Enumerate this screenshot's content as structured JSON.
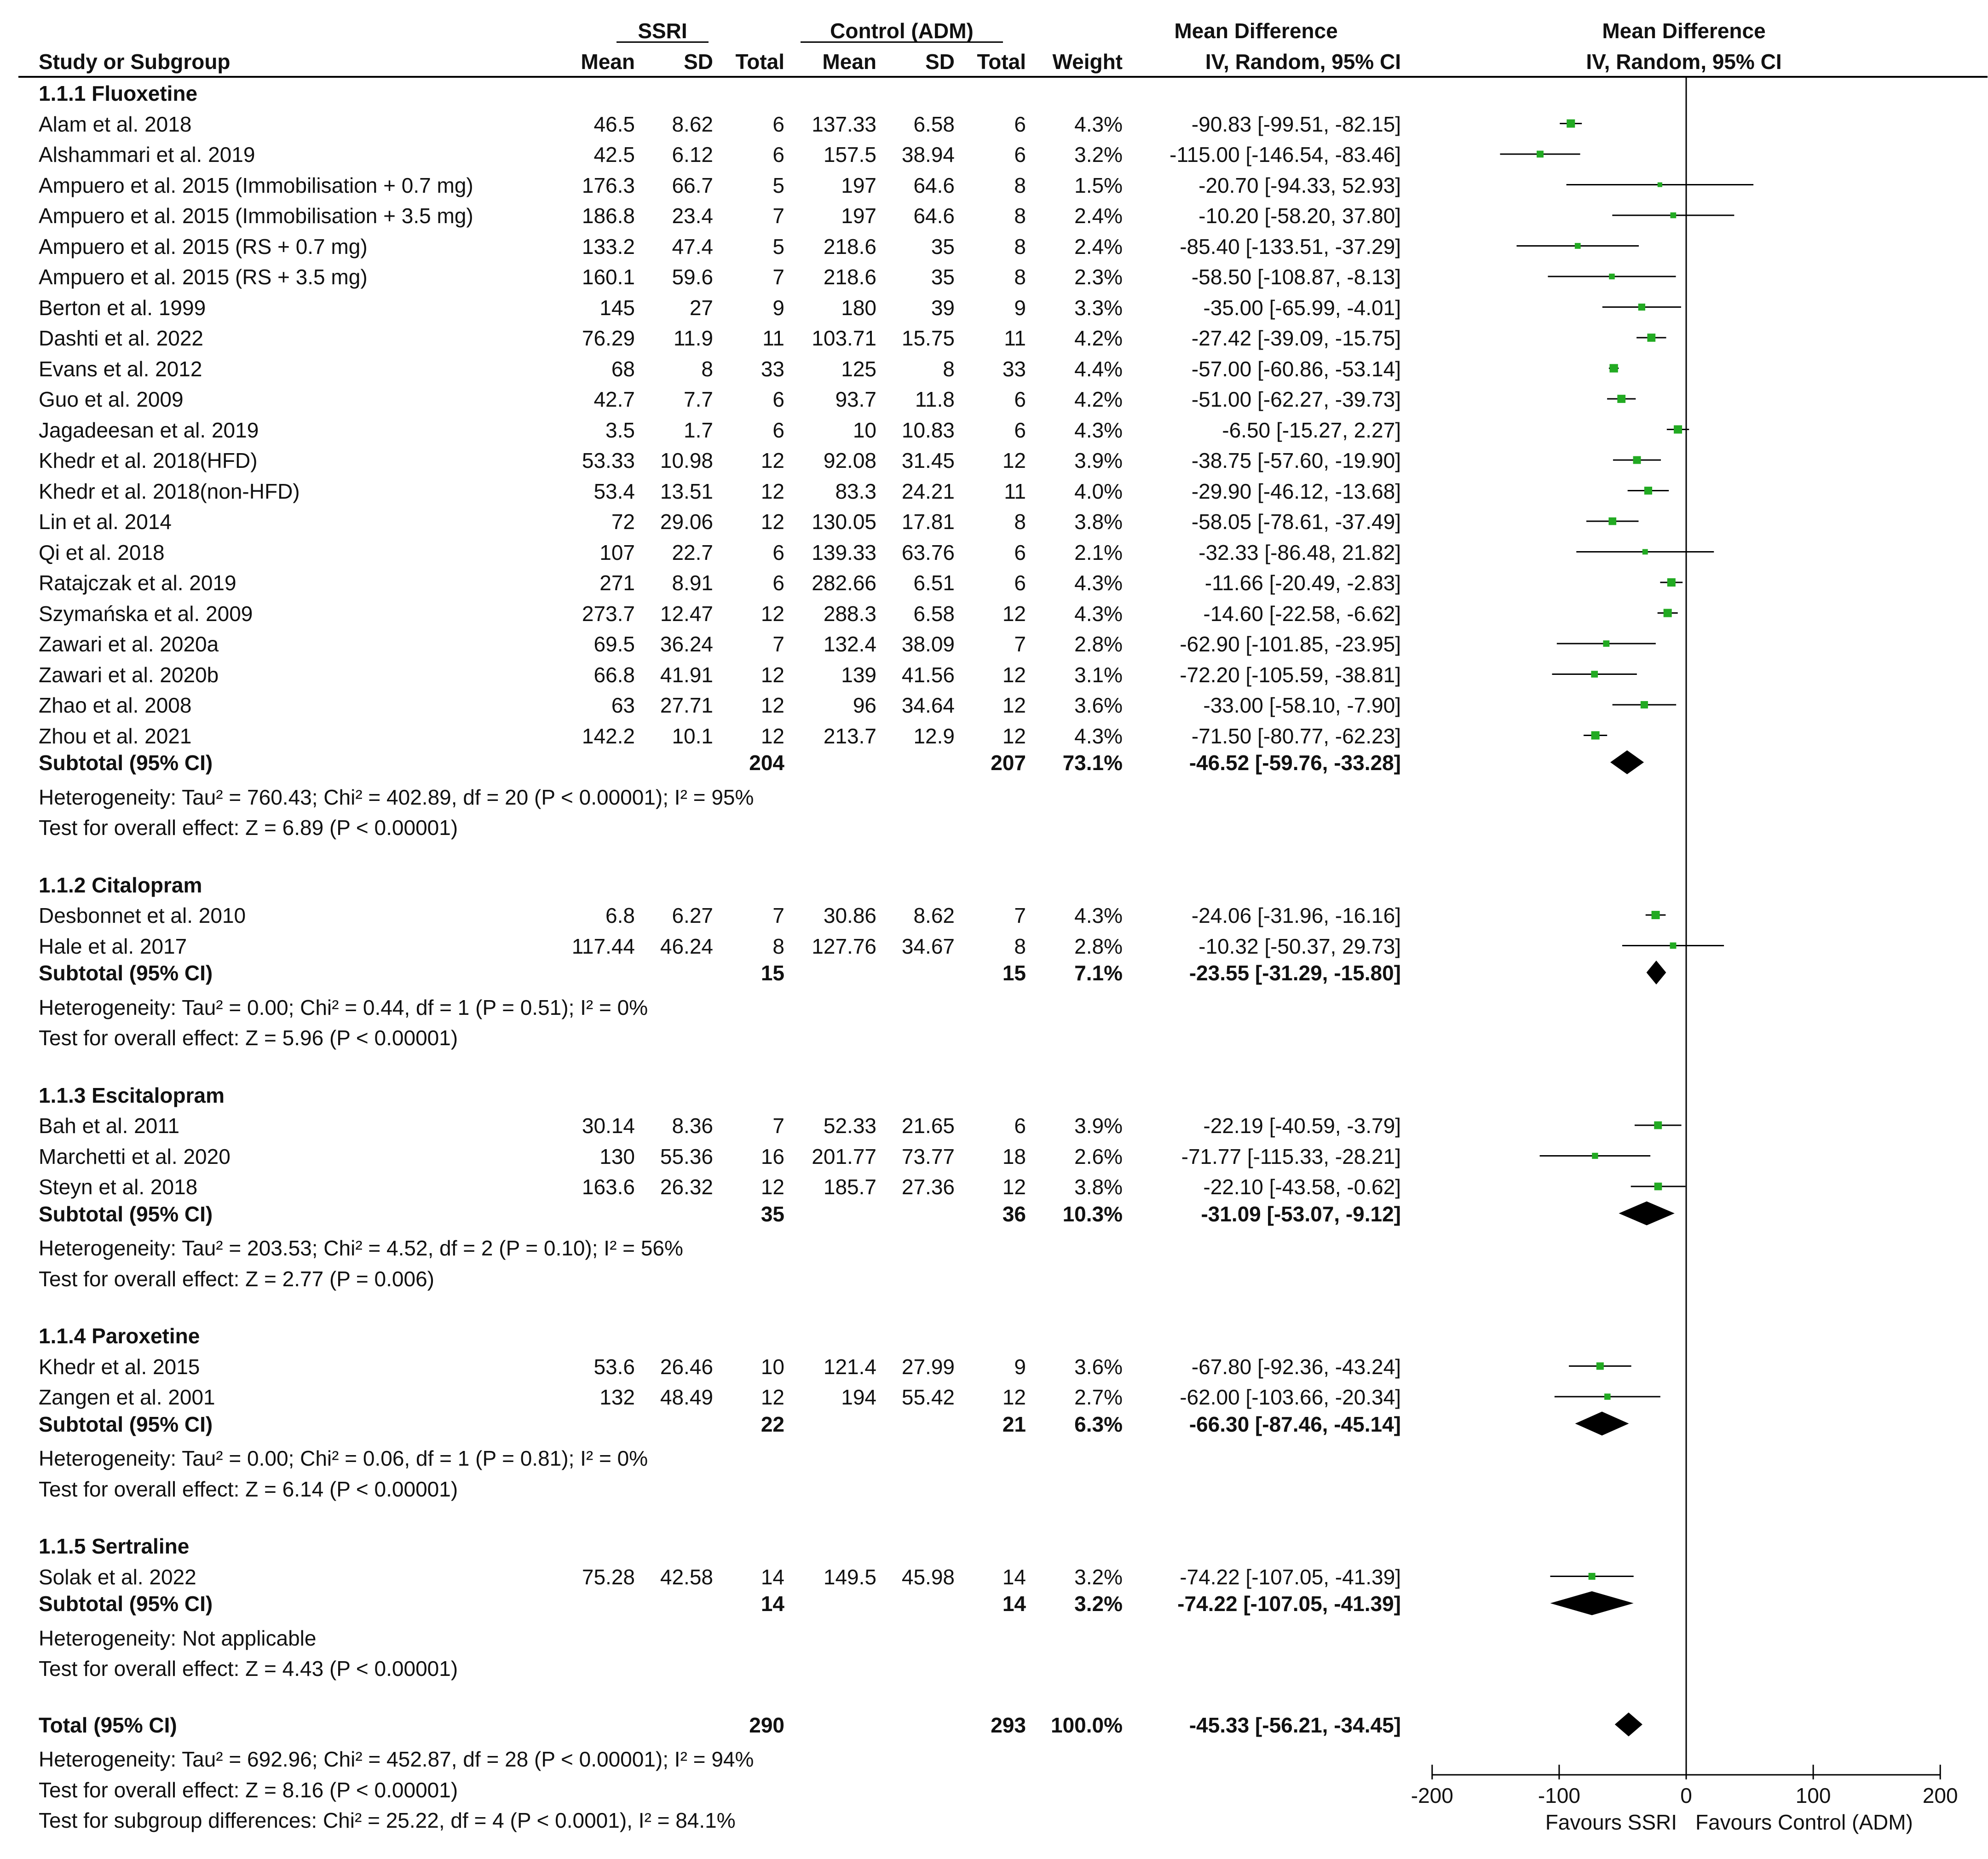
{
  "header": {
    "group_ssri": "SSRI",
    "group_control": "Control (ADM)",
    "md_title": "Mean Difference",
    "md_method": "IV, Random, 95% CI",
    "plot_title": "Mean Difference",
    "plot_method": "IV, Random, 95% CI",
    "study_col": "Study or Subgroup",
    "mean": "Mean",
    "sd": "SD",
    "total": "Total",
    "weight": "Weight"
  },
  "chart_data": {
    "type": "forest",
    "x_axis": {
      "min": -200,
      "max": 200,
      "ticks": [
        -200,
        -100,
        0,
        100,
        200
      ],
      "tick_labels": [
        "-200",
        "-100",
        "0",
        "100",
        "200"
      ],
      "left_label": "Favours SSRI",
      "right_label": "Favours Control (ADM)"
    },
    "subgroups": [
      {
        "name": "1.1.1 Fluoxetine",
        "studies": [
          {
            "study": "Alam et al. 2018",
            "m1": "46.5",
            "sd1": "8.62",
            "n1": "6",
            "m2": "137.33",
            "sd2": "6.58",
            "n2": "6",
            "weight": "4.3%",
            "ci_text": "-90.83 [-99.51, -82.15]",
            "md": -90.83,
            "lo": -99.51,
            "hi": -82.15,
            "w": 4.3
          },
          {
            "study": "Alshammari et al. 2019",
            "m1": "42.5",
            "sd1": "6.12",
            "n1": "6",
            "m2": "157.5",
            "sd2": "38.94",
            "n2": "6",
            "weight": "3.2%",
            "ci_text": "-115.00 [-146.54, -83.46]",
            "md": -115.0,
            "lo": -146.54,
            "hi": -83.46,
            "w": 3.2
          },
          {
            "study": "Ampuero et al. 2015 (Immobilisation + 0.7 mg)",
            "m1": "176.3",
            "sd1": "66.7",
            "n1": "5",
            "m2": "197",
            "sd2": "64.6",
            "n2": "8",
            "weight": "1.5%",
            "ci_text": "-20.70 [-94.33, 52.93]",
            "md": -20.7,
            "lo": -94.33,
            "hi": 52.93,
            "w": 1.5
          },
          {
            "study": "Ampuero et al. 2015 (Immobilisation + 3.5 mg)",
            "m1": "186.8",
            "sd1": "23.4",
            "n1": "7",
            "m2": "197",
            "sd2": "64.6",
            "n2": "8",
            "weight": "2.4%",
            "ci_text": "-10.20 [-58.20, 37.80]",
            "md": -10.2,
            "lo": -58.2,
            "hi": 37.8,
            "w": 2.4
          },
          {
            "study": "Ampuero et al. 2015 (RS + 0.7 mg)",
            "m1": "133.2",
            "sd1": "47.4",
            "n1": "5",
            "m2": "218.6",
            "sd2": "35",
            "n2": "8",
            "weight": "2.4%",
            "ci_text": "-85.40 [-133.51, -37.29]",
            "md": -85.4,
            "lo": -133.51,
            "hi": -37.29,
            "w": 2.4
          },
          {
            "study": "Ampuero et al. 2015 (RS + 3.5 mg)",
            "m1": "160.1",
            "sd1": "59.6",
            "n1": "7",
            "m2": "218.6",
            "sd2": "35",
            "n2": "8",
            "weight": "2.3%",
            "ci_text": "-58.50 [-108.87, -8.13]",
            "md": -58.5,
            "lo": -108.87,
            "hi": -8.13,
            "w": 2.3
          },
          {
            "study": "Berton et al. 1999",
            "m1": "145",
            "sd1": "27",
            "n1": "9",
            "m2": "180",
            "sd2": "39",
            "n2": "9",
            "weight": "3.3%",
            "ci_text": "-35.00 [-65.99, -4.01]",
            "md": -35.0,
            "lo": -65.99,
            "hi": -4.01,
            "w": 3.3
          },
          {
            "study": "Dashti et al. 2022",
            "m1": "76.29",
            "sd1": "11.9",
            "n1": "11",
            "m2": "103.71",
            "sd2": "15.75",
            "n2": "11",
            "weight": "4.2%",
            "ci_text": "-27.42 [-39.09, -15.75]",
            "md": -27.42,
            "lo": -39.09,
            "hi": -15.75,
            "w": 4.2
          },
          {
            "study": "Evans et al. 2012",
            "m1": "68",
            "sd1": "8",
            "n1": "33",
            "m2": "125",
            "sd2": "8",
            "n2": "33",
            "weight": "4.4%",
            "ci_text": "-57.00 [-60.86, -53.14]",
            "md": -57.0,
            "lo": -60.86,
            "hi": -53.14,
            "w": 4.4
          },
          {
            "study": "Guo et al. 2009",
            "m1": "42.7",
            "sd1": "7.7",
            "n1": "6",
            "m2": "93.7",
            "sd2": "11.8",
            "n2": "6",
            "weight": "4.2%",
            "ci_text": "-51.00 [-62.27, -39.73]",
            "md": -51.0,
            "lo": -62.27,
            "hi": -39.73,
            "w": 4.2
          },
          {
            "study": "Jagadeesan et al. 2019",
            "m1": "3.5",
            "sd1": "1.7",
            "n1": "6",
            "m2": "10",
            "sd2": "10.83",
            "n2": "6",
            "weight": "4.3%",
            "ci_text": "-6.50 [-15.27, 2.27]",
            "md": -6.5,
            "lo": -15.27,
            "hi": 2.27,
            "w": 4.3
          },
          {
            "study": "Khedr et al. 2018(HFD)",
            "m1": "53.33",
            "sd1": "10.98",
            "n1": "12",
            "m2": "92.08",
            "sd2": "31.45",
            "n2": "12",
            "weight": "3.9%",
            "ci_text": "-38.75 [-57.60, -19.90]",
            "md": -38.75,
            "lo": -57.6,
            "hi": -19.9,
            "w": 3.9
          },
          {
            "study": "Khedr et al. 2018(non-HFD)",
            "m1": "53.4",
            "sd1": "13.51",
            "n1": "12",
            "m2": "83.3",
            "sd2": "24.21",
            "n2": "11",
            "weight": "4.0%",
            "ci_text": "-29.90 [-46.12, -13.68]",
            "md": -29.9,
            "lo": -46.12,
            "hi": -13.68,
            "w": 4.0
          },
          {
            "study": "Lin et al. 2014",
            "m1": "72",
            "sd1": "29.06",
            "n1": "12",
            "m2": "130.05",
            "sd2": "17.81",
            "n2": "8",
            "weight": "3.8%",
            "ci_text": "-58.05 [-78.61, -37.49]",
            "md": -58.05,
            "lo": -78.61,
            "hi": -37.49,
            "w": 3.8
          },
          {
            "study": "Qi et al. 2018",
            "m1": "107",
            "sd1": "22.7",
            "n1": "6",
            "m2": "139.33",
            "sd2": "63.76",
            "n2": "6",
            "weight": "2.1%",
            "ci_text": "-32.33 [-86.48, 21.82]",
            "md": -32.33,
            "lo": -86.48,
            "hi": 21.82,
            "w": 2.1
          },
          {
            "study": "Ratajczak et al. 2019",
            "m1": "271",
            "sd1": "8.91",
            "n1": "6",
            "m2": "282.66",
            "sd2": "6.51",
            "n2": "6",
            "weight": "4.3%",
            "ci_text": "-11.66 [-20.49, -2.83]",
            "md": -11.66,
            "lo": -20.49,
            "hi": -2.83,
            "w": 4.3
          },
          {
            "study": "Szymańska et al. 2009",
            "m1": "273.7",
            "sd1": "12.47",
            "n1": "12",
            "m2": "288.3",
            "sd2": "6.58",
            "n2": "12",
            "weight": "4.3%",
            "ci_text": "-14.60 [-22.58, -6.62]",
            "md": -14.6,
            "lo": -22.58,
            "hi": -6.62,
            "w": 4.3
          },
          {
            "study": "Zawari et al. 2020a",
            "m1": "69.5",
            "sd1": "36.24",
            "n1": "7",
            "m2": "132.4",
            "sd2": "38.09",
            "n2": "7",
            "weight": "2.8%",
            "ci_text": "-62.90 [-101.85, -23.95]",
            "md": -62.9,
            "lo": -101.85,
            "hi": -23.95,
            "w": 2.8
          },
          {
            "study": "Zawari et al. 2020b",
            "m1": "66.8",
            "sd1": "41.91",
            "n1": "12",
            "m2": "139",
            "sd2": "41.56",
            "n2": "12",
            "weight": "3.1%",
            "ci_text": "-72.20 [-105.59, -38.81]",
            "md": -72.2,
            "lo": -105.59,
            "hi": -38.81,
            "w": 3.1
          },
          {
            "study": "Zhao et al. 2008",
            "m1": "63",
            "sd1": "27.71",
            "n1": "12",
            "m2": "96",
            "sd2": "34.64",
            "n2": "12",
            "weight": "3.6%",
            "ci_text": "-33.00 [-58.10, -7.90]",
            "md": -33.0,
            "lo": -58.1,
            "hi": -7.9,
            "w": 3.6
          },
          {
            "study": "Zhou et al. 2021",
            "m1": "142.2",
            "sd1": "10.1",
            "n1": "12",
            "m2": "213.7",
            "sd2": "12.9",
            "n2": "12",
            "weight": "4.3%",
            "ci_text": "-71.50 [-80.77, -62.23]",
            "md": -71.5,
            "lo": -80.77,
            "hi": -62.23,
            "w": 4.3
          }
        ],
        "subtotal": {
          "label": "Subtotal (95% CI)",
          "n1": "204",
          "n2": "207",
          "weight": "73.1%",
          "ci_text": "-46.52 [-59.76, -33.28]",
          "md": -46.52,
          "lo": -59.76,
          "hi": -33.28
        },
        "heterogeneity": "Heterogeneity: Tau² = 760.43; Chi² = 402.89, df = 20 (P < 0.00001); I² = 95%",
        "overall_effect": "Test for overall effect: Z = 6.89 (P < 0.00001)"
      },
      {
        "name": "1.1.2 Citalopram",
        "studies": [
          {
            "study": "Desbonnet et al. 2010",
            "m1": "6.8",
            "sd1": "6.27",
            "n1": "7",
            "m2": "30.86",
            "sd2": "8.62",
            "n2": "7",
            "weight": "4.3%",
            "ci_text": "-24.06 [-31.96, -16.16]",
            "md": -24.06,
            "lo": -31.96,
            "hi": -16.16,
            "w": 4.3
          },
          {
            "study": "Hale et al. 2017",
            "m1": "117.44",
            "sd1": "46.24",
            "n1": "8",
            "m2": "127.76",
            "sd2": "34.67",
            "n2": "8",
            "weight": "2.8%",
            "ci_text": "-10.32 [-50.37, 29.73]",
            "md": -10.32,
            "lo": -50.37,
            "hi": 29.73,
            "w": 2.8
          }
        ],
        "subtotal": {
          "label": "Subtotal (95% CI)",
          "n1": "15",
          "n2": "15",
          "weight": "7.1%",
          "ci_text": "-23.55 [-31.29, -15.80]",
          "md": -23.55,
          "lo": -31.29,
          "hi": -15.8
        },
        "heterogeneity": "Heterogeneity: Tau² = 0.00; Chi² = 0.44, df = 1 (P = 0.51); I² = 0%",
        "overall_effect": "Test for overall effect: Z = 5.96 (P < 0.00001)"
      },
      {
        "name": "1.1.3 Escitalopram",
        "studies": [
          {
            "study": "Bah et al. 2011",
            "m1": "30.14",
            "sd1": "8.36",
            "n1": "7",
            "m2": "52.33",
            "sd2": "21.65",
            "n2": "6",
            "weight": "3.9%",
            "ci_text": "-22.19 [-40.59, -3.79]",
            "md": -22.19,
            "lo": -40.59,
            "hi": -3.79,
            "w": 3.9
          },
          {
            "study": "Marchetti et al. 2020",
            "m1": "130",
            "sd1": "55.36",
            "n1": "16",
            "m2": "201.77",
            "sd2": "73.77",
            "n2": "18",
            "weight": "2.6%",
            "ci_text": "-71.77 [-115.33, -28.21]",
            "md": -71.77,
            "lo": -115.33,
            "hi": -28.21,
            "w": 2.6
          },
          {
            "study": "Steyn et al. 2018",
            "m1": "163.6",
            "sd1": "26.32",
            "n1": "12",
            "m2": "185.7",
            "sd2": "27.36",
            "n2": "12",
            "weight": "3.8%",
            "ci_text": "-22.10 [-43.58, -0.62]",
            "md": -22.1,
            "lo": -43.58,
            "hi": -0.62,
            "w": 3.8
          }
        ],
        "subtotal": {
          "label": "Subtotal (95% CI)",
          "n1": "35",
          "n2": "36",
          "weight": "10.3%",
          "ci_text": "-31.09 [-53.07, -9.12]",
          "md": -31.09,
          "lo": -53.07,
          "hi": -9.12
        },
        "heterogeneity": "Heterogeneity: Tau² = 203.53; Chi² = 4.52, df = 2 (P = 0.10); I² = 56%",
        "overall_effect": "Test for overall effect: Z = 2.77 (P = 0.006)"
      },
      {
        "name": "1.1.4 Paroxetine",
        "studies": [
          {
            "study": "Khedr et al. 2015",
            "m1": "53.6",
            "sd1": "26.46",
            "n1": "10",
            "m2": "121.4",
            "sd2": "27.99",
            "n2": "9",
            "weight": "3.6%",
            "ci_text": "-67.80 [-92.36, -43.24]",
            "md": -67.8,
            "lo": -92.36,
            "hi": -43.24,
            "w": 3.6
          },
          {
            "study": "Zangen et al. 2001",
            "m1": "132",
            "sd1": "48.49",
            "n1": "12",
            "m2": "194",
            "sd2": "55.42",
            "n2": "12",
            "weight": "2.7%",
            "ci_text": "-62.00 [-103.66, -20.34]",
            "md": -62.0,
            "lo": -103.66,
            "hi": -20.34,
            "w": 2.7
          }
        ],
        "subtotal": {
          "label": "Subtotal (95% CI)",
          "n1": "22",
          "n2": "21",
          "weight": "6.3%",
          "ci_text": "-66.30 [-87.46, -45.14]",
          "md": -66.3,
          "lo": -87.46,
          "hi": -45.14
        },
        "heterogeneity": "Heterogeneity: Tau² = 0.00; Chi² = 0.06, df = 1 (P = 0.81); I² = 0%",
        "overall_effect": "Test for overall effect: Z = 6.14 (P < 0.00001)"
      },
      {
        "name": "1.1.5 Sertraline",
        "studies": [
          {
            "study": "Solak et al. 2022",
            "m1": "75.28",
            "sd1": "42.58",
            "n1": "14",
            "m2": "149.5",
            "sd2": "45.98",
            "n2": "14",
            "weight": "3.2%",
            "ci_text": "-74.22 [-107.05, -41.39]",
            "md": -74.22,
            "lo": -107.05,
            "hi": -41.39,
            "w": 3.2
          }
        ],
        "subtotal": {
          "label": "Subtotal (95% CI)",
          "n1": "14",
          "n2": "14",
          "weight": "3.2%",
          "ci_text": "-74.22 [-107.05, -41.39]",
          "md": -74.22,
          "lo": -107.05,
          "hi": -41.39
        },
        "heterogeneity": "Heterogeneity: Not applicable",
        "overall_effect": "Test for overall effect: Z = 4.43 (P < 0.00001)"
      }
    ],
    "total": {
      "label": "Total (95% CI)",
      "n1": "290",
      "n2": "293",
      "weight": "100.0%",
      "ci_text": "-45.33 [-56.21, -34.45]",
      "md": -45.33,
      "lo": -56.21,
      "hi": -34.45
    },
    "footer": [
      "Heterogeneity: Tau² = 692.96; Chi² = 452.87, df = 28 (P < 0.00001); I² = 94%",
      "Test for overall effect: Z = 8.16 (P < 0.00001)",
      "Test for subgroup differences: Chi² = 25.22, df = 4 (P < 0.0001), I² = 84.1%"
    ],
    "colors": {
      "square": "#22aa22",
      "line": "#000000",
      "diamond": "#000000"
    }
  }
}
